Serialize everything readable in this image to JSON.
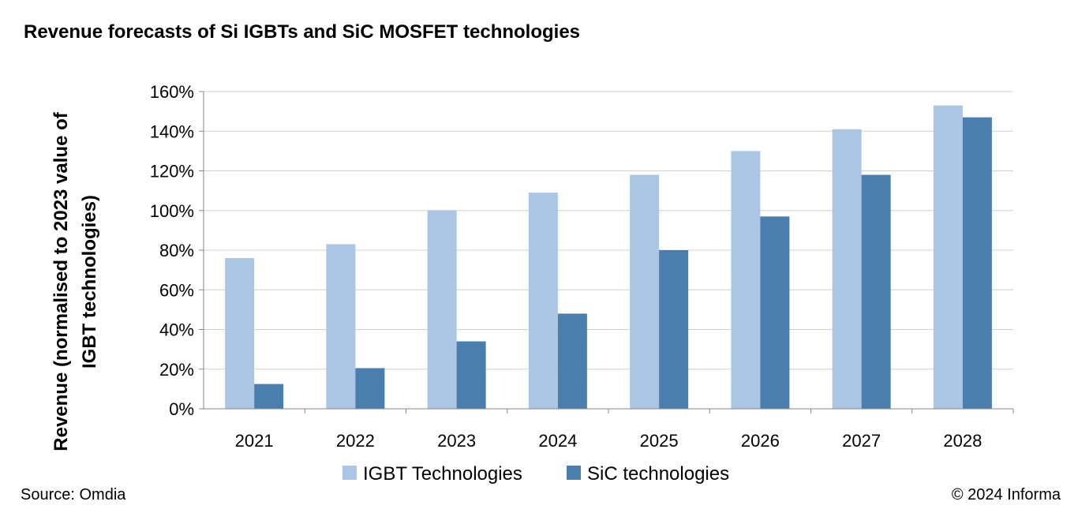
{
  "title": "Revenue forecasts of Si IGBTs and SiC MOSFET technologies",
  "source": "Source: Omdia",
  "copyright": "© 2024 Informa",
  "colors": {
    "igbt": "#adc5e4",
    "sic": "#4a7ead",
    "grid": "#d0d0d0",
    "axis": "#888888"
  },
  "chart_data": {
    "type": "bar",
    "title": "Revenue forecasts of Si IGBTs and SiC MOSFET technologies",
    "ylabel_lines": [
      "Revenue (normalised to 2023 value of",
      "IGBT technologies)"
    ],
    "xlabel": "",
    "categories": [
      "2021",
      "2022",
      "2023",
      "2024",
      "2025",
      "2026",
      "2027",
      "2028"
    ],
    "series": [
      {
        "name": "IGBT Technologies",
        "values": [
          76,
          83,
          100,
          109,
          118,
          130,
          141,
          153
        ]
      },
      {
        "name": "SiC technologies",
        "values": [
          12.5,
          20.5,
          34,
          48,
          80,
          97,
          118,
          147
        ]
      }
    ],
    "ylim": [
      0,
      160
    ],
    "yticks": [
      "0%",
      "20%",
      "40%",
      "60%",
      "80%",
      "100%",
      "120%",
      "140%",
      "160%"
    ],
    "ytick_values": [
      0,
      20,
      40,
      60,
      80,
      100,
      120,
      140,
      160
    ],
    "grid": true,
    "legend_position": "bottom"
  }
}
